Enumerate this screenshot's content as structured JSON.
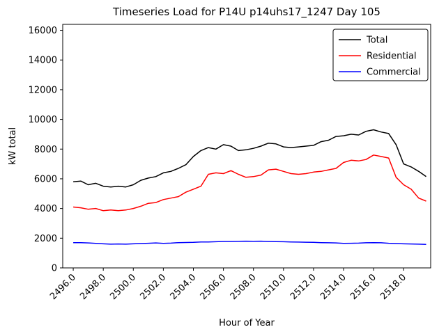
{
  "chart_data": {
    "type": "line",
    "title": "Timeseries Load for P14U p14uhs17_1247  Day 105",
    "xlabel": "Hour of Year",
    "ylabel": "kW total",
    "grid": false,
    "legend_position": "upper right",
    "xlim": [
      2495.3,
      2519.8
    ],
    "ylim": [
      0,
      16400
    ],
    "xticks": [
      2496,
      2498,
      2500,
      2502,
      2504,
      2506,
      2508,
      2510,
      2512,
      2514,
      2516,
      2518
    ],
    "xtick_labels": [
      "2496.0",
      "2498.0",
      "2500.0",
      "2502.0",
      "2504.0",
      "2506.0",
      "2508.0",
      "2510.0",
      "2512.0",
      "2514.0",
      "2516.0",
      "2518.0"
    ],
    "yticks": [
      0,
      2000,
      4000,
      6000,
      8000,
      10000,
      12000,
      14000,
      16000
    ],
    "ytick_labels": [
      "0",
      "2000",
      "4000",
      "6000",
      "8000",
      "10000",
      "12000",
      "14000",
      "16000"
    ],
    "x": [
      2496.0,
      2496.5,
      2497.0,
      2497.5,
      2498.0,
      2498.5,
      2499.0,
      2499.5,
      2500.0,
      2500.5,
      2501.0,
      2501.5,
      2502.0,
      2502.5,
      2503.0,
      2503.5,
      2504.0,
      2504.5,
      2505.0,
      2505.5,
      2506.0,
      2506.5,
      2507.0,
      2507.5,
      2508.0,
      2508.5,
      2509.0,
      2509.5,
      2510.0,
      2510.5,
      2511.0,
      2511.5,
      2512.0,
      2512.5,
      2513.0,
      2513.5,
      2514.0,
      2514.5,
      2515.0,
      2515.5,
      2516.0,
      2516.5,
      2517.0,
      2517.5,
      2518.0,
      2518.5,
      2519.0,
      2519.5
    ],
    "series": [
      {
        "name": "Total",
        "color": "#000000",
        "values": [
          5800,
          5850,
          5600,
          5700,
          5500,
          5450,
          5500,
          5450,
          5600,
          5900,
          6050,
          6150,
          6400,
          6500,
          6700,
          6950,
          7500,
          7900,
          8100,
          8000,
          8300,
          8200,
          7900,
          7950,
          8050,
          8200,
          8400,
          8350,
          8150,
          8100,
          8150,
          8200,
          8250,
          8500,
          8600,
          8850,
          8900,
          9000,
          8950,
          9200,
          9300,
          9150,
          9050,
          8300,
          7000,
          6800,
          6500,
          6150
        ]
      },
      {
        "name": "Residential",
        "color": "#ff0000",
        "values": [
          4100,
          4050,
          3950,
          4000,
          3850,
          3900,
          3850,
          3900,
          4000,
          4150,
          4350,
          4400,
          4600,
          4700,
          4800,
          5100,
          5300,
          5500,
          6300,
          6400,
          6350,
          6550,
          6300,
          6100,
          6150,
          6250,
          6600,
          6650,
          6500,
          6350,
          6300,
          6350,
          6450,
          6500,
          6600,
          6700,
          7100,
          7250,
          7200,
          7300,
          7600,
          7500,
          7400,
          6100,
          5600,
          5300,
          4700,
          4500
        ]
      },
      {
        "name": "Commercial",
        "color": "#0000ff",
        "values": [
          1700,
          1700,
          1680,
          1650,
          1620,
          1600,
          1610,
          1600,
          1620,
          1640,
          1660,
          1680,
          1650,
          1670,
          1700,
          1710,
          1720,
          1750,
          1750,
          1760,
          1780,
          1780,
          1790,
          1800,
          1790,
          1800,
          1780,
          1770,
          1760,
          1750,
          1740,
          1730,
          1720,
          1700,
          1690,
          1680,
          1650,
          1660,
          1670,
          1690,
          1700,
          1690,
          1660,
          1640,
          1620,
          1610,
          1600,
          1580
        ]
      }
    ]
  }
}
